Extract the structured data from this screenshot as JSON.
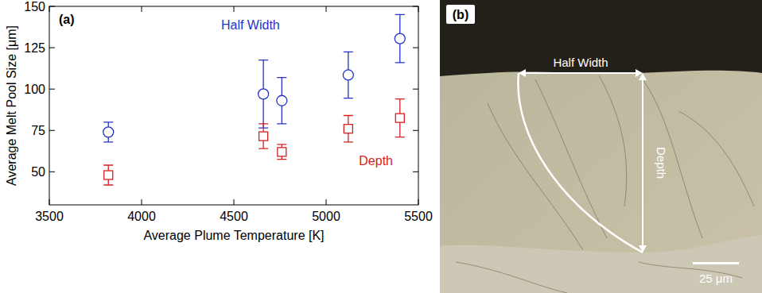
{
  "chart_data": {
    "type": "scatter",
    "title": "(a)",
    "x_label": "Average Plume Temperature [K]",
    "y_label": "Average Melt Pool Size [μm]",
    "x": [
      3820,
      4660,
      4760,
      5120,
      5400
    ],
    "series": [
      {
        "name": "Half Width",
        "color": "#2432c8",
        "marker": "circle",
        "values": [
          74,
          97,
          93,
          108.5,
          130.5
        ],
        "errors": [
          6,
          20.5,
          14,
          14,
          14.5
        ]
      },
      {
        "name": "Depth",
        "color": "#d62020",
        "marker": "square",
        "values": [
          48,
          71.5,
          62,
          76,
          82.5
        ],
        "errors": [
          6,
          7.5,
          4.5,
          8,
          11.5
        ]
      }
    ],
    "xlim": [
      3500,
      5500
    ],
    "xticks": [
      3500,
      4000,
      4500,
      5000,
      5500
    ],
    "ylim": [
      30,
      150
    ],
    "yticks": [
      50,
      75,
      100,
      125,
      150
    ],
    "grid": false
  },
  "micrograph": {
    "label": "(b)",
    "half_width_label": "Half Width",
    "depth_label": "Depth",
    "scale_bar_label": "25 μm"
  }
}
